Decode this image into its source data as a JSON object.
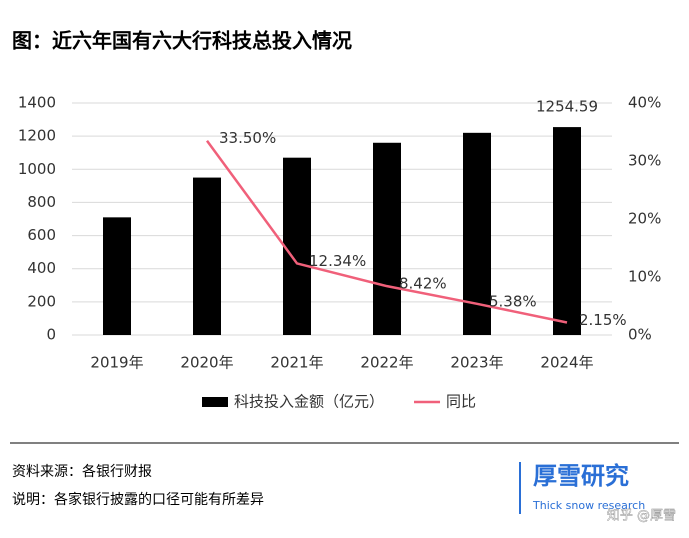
{
  "chart_data": {
    "type": "bar",
    "title": "图：近六年国有六大行科技总投入情况",
    "categories": [
      "2019年",
      "2020年",
      "2021年",
      "2022年",
      "2023年",
      "2024年"
    ],
    "ylim": [
      0,
      1400
    ],
    "yticks": [
      0,
      200,
      400,
      600,
      800,
      1000,
      1200,
      1400
    ],
    "y2lim": [
      0,
      40
    ],
    "y2ticks": [
      {
        "value": 0,
        "label": "0%"
      },
      {
        "value": 10,
        "label": "10%"
      },
      {
        "value": 20,
        "label": "20%"
      },
      {
        "value": 30,
        "label": "30%"
      },
      {
        "value": 40,
        "label": "40%"
      }
    ],
    "grid": true,
    "legend": "bottom",
    "series": [
      {
        "name": "科技投入金额（亿元）",
        "type": "bar",
        "color": "#000000",
        "values": [
          710,
          950,
          1070,
          1160,
          1220,
          1254.59
        ],
        "value_labels": [
          null,
          null,
          null,
          null,
          null,
          "1254.59"
        ]
      },
      {
        "name": "同比",
        "type": "line",
        "axis": "y2",
        "color": "#f0607a",
        "values": [
          null,
          33.5,
          12.34,
          8.42,
          5.38,
          2.15
        ],
        "value_labels": [
          null,
          "33.50%",
          "12.34%",
          "8.42%",
          "5.38%",
          "2.15%"
        ]
      }
    ]
  },
  "source": "资料来源：各银行财报",
  "note": "说明：各家银行披露的口径可能有所差异",
  "logo": {
    "title": "厚雪研究",
    "subtitle": "Thick snow research"
  },
  "watermark": "知乎 @厚雪"
}
